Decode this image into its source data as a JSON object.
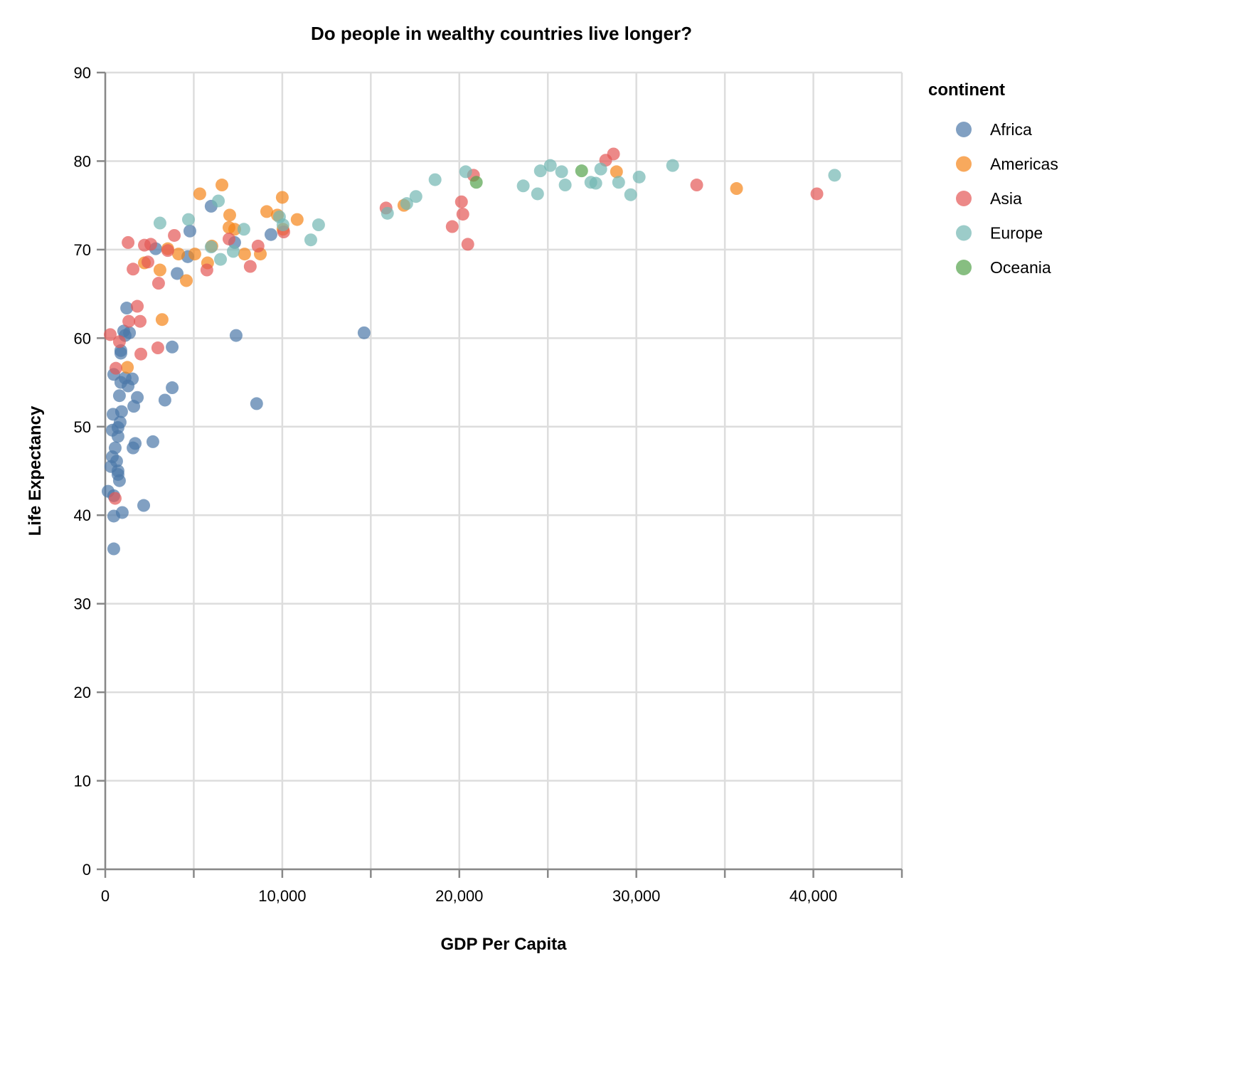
{
  "chart_data": {
    "type": "scatter",
    "title": "Do people in wealthy countries live longer?",
    "xlabel": "GDP Per Capita",
    "ylabel": "Life Expectancy",
    "xlim": [
      0,
      45000
    ],
    "ylim": [
      0,
      90
    ],
    "x_ticks": [
      "0",
      "10,000",
      "20,000",
      "30,000",
      "40,000"
    ],
    "y_ticks": [
      "0",
      "10",
      "20",
      "30",
      "40",
      "50",
      "60",
      "70",
      "80",
      "90"
    ],
    "grid": true,
    "legend": {
      "title": "continent",
      "placement": "right"
    },
    "series": [
      {
        "name": "Africa",
        "color": "#4c78a8",
        "points": [
          [
            5980,
            74.9
          ],
          [
            4780,
            72.1
          ],
          [
            9360,
            71.7
          ],
          [
            7310,
            70.8
          ],
          [
            4660,
            69.2
          ],
          [
            2850,
            70.1
          ],
          [
            4060,
            67.3
          ],
          [
            1210,
            63.4
          ],
          [
            1040,
            60.8
          ],
          [
            1370,
            60.6
          ],
          [
            1120,
            60.3
          ],
          [
            880,
            58.6
          ],
          [
            880,
            58.3
          ],
          [
            3780,
            59.0
          ],
          [
            7390,
            60.3
          ],
          [
            14620,
            60.6
          ],
          [
            480,
            55.9
          ],
          [
            880,
            55.0
          ],
          [
            1120,
            55.5
          ],
          [
            1530,
            55.4
          ],
          [
            1290,
            54.6
          ],
          [
            800,
            53.5
          ],
          [
            1810,
            53.3
          ],
          [
            3370,
            53.0
          ],
          [
            3780,
            54.4
          ],
          [
            1610,
            52.3
          ],
          [
            440,
            51.4
          ],
          [
            920,
            51.7
          ],
          [
            400,
            49.6
          ],
          [
            840,
            50.5
          ],
          [
            720,
            49.9
          ],
          [
            720,
            48.9
          ],
          [
            560,
            47.6
          ],
          [
            1570,
            47.6
          ],
          [
            1690,
            48.1
          ],
          [
            2690,
            48.3
          ],
          [
            400,
            46.6
          ],
          [
            640,
            46.1
          ],
          [
            320,
            45.5
          ],
          [
            720,
            45.0
          ],
          [
            720,
            44.6
          ],
          [
            800,
            43.9
          ],
          [
            160,
            42.7
          ],
          [
            480,
            42.2
          ],
          [
            960,
            40.3
          ],
          [
            2170,
            41.1
          ],
          [
            480,
            39.9
          ],
          [
            480,
            36.2
          ],
          [
            8550,
            52.6
          ]
        ]
      },
      {
        "name": "Americas",
        "color": "#f58518",
        "points": [
          [
            5340,
            76.3
          ],
          [
            6590,
            77.3
          ],
          [
            7030,
            73.9
          ],
          [
            10000,
            75.9
          ],
          [
            9120,
            74.3
          ],
          [
            9720,
            73.9
          ],
          [
            10840,
            73.4
          ],
          [
            6990,
            72.5
          ],
          [
            7310,
            72.3
          ],
          [
            10040,
            72.3
          ],
          [
            8760,
            69.5
          ],
          [
            7870,
            69.5
          ],
          [
            5060,
            69.5
          ],
          [
            4140,
            69.5
          ],
          [
            3530,
            70.1
          ],
          [
            6020,
            70.4
          ],
          [
            5780,
            68.5
          ],
          [
            4580,
            66.5
          ],
          [
            3090,
            67.7
          ],
          [
            3210,
            62.1
          ],
          [
            1250,
            56.7
          ],
          [
            16870,
            75.0
          ],
          [
            28880,
            78.8
          ],
          [
            35660,
            76.9
          ],
          [
            2210,
            68.5
          ]
        ]
      },
      {
        "name": "Asia",
        "color": "#e45756",
        "points": [
          [
            1290,
            70.8
          ],
          [
            2210,
            70.5
          ],
          [
            2570,
            70.6
          ],
          [
            1570,
            67.8
          ],
          [
            3900,
            71.6
          ],
          [
            3530,
            69.9
          ],
          [
            2410,
            68.6
          ],
          [
            3010,
            66.2
          ],
          [
            1810,
            63.6
          ],
          [
            1970,
            61.9
          ],
          [
            1330,
            61.9
          ],
          [
            2010,
            58.2
          ],
          [
            2970,
            58.9
          ],
          [
            280,
            60.4
          ],
          [
            800,
            59.6
          ],
          [
            600,
            56.6
          ],
          [
            560,
            41.9
          ],
          [
            5740,
            67.7
          ],
          [
            6990,
            71.2
          ],
          [
            8190,
            68.1
          ],
          [
            8630,
            70.4
          ],
          [
            10080,
            72.0
          ],
          [
            15860,
            74.7
          ],
          [
            20120,
            75.4
          ],
          [
            20200,
            74.0
          ],
          [
            19600,
            72.6
          ],
          [
            20480,
            70.6
          ],
          [
            20800,
            78.4
          ],
          [
            28270,
            80.1
          ],
          [
            28710,
            80.8
          ],
          [
            33410,
            77.3
          ],
          [
            40200,
            76.3
          ]
        ]
      },
      {
        "name": "Europe",
        "color": "#72b7b2",
        "points": [
          [
            3090,
            73.0
          ],
          [
            4700,
            73.4
          ],
          [
            6390,
            75.5
          ],
          [
            5980,
            70.3
          ],
          [
            6510,
            68.9
          ],
          [
            7230,
            69.8
          ],
          [
            7830,
            72.3
          ],
          [
            9840,
            73.7
          ],
          [
            10040,
            72.8
          ],
          [
            11610,
            71.1
          ],
          [
            12050,
            72.8
          ],
          [
            15940,
            74.1
          ],
          [
            17030,
            75.2
          ],
          [
            17550,
            76.0
          ],
          [
            18630,
            77.9
          ],
          [
            20360,
            78.8
          ],
          [
            23610,
            77.2
          ],
          [
            24420,
            76.3
          ],
          [
            24580,
            78.9
          ],
          [
            25140,
            79.5
          ],
          [
            25780,
            78.8
          ],
          [
            25980,
            77.3
          ],
          [
            27430,
            77.6
          ],
          [
            27710,
            77.5
          ],
          [
            27990,
            79.1
          ],
          [
            29000,
            77.6
          ],
          [
            29680,
            76.2
          ],
          [
            30160,
            78.2
          ],
          [
            32050,
            79.5
          ],
          [
            41200,
            78.4
          ]
        ]
      },
      {
        "name": "Oceania",
        "color": "#54a24b",
        "points": [
          [
            26910,
            78.9
          ],
          [
            20960,
            77.6
          ]
        ]
      }
    ]
  }
}
